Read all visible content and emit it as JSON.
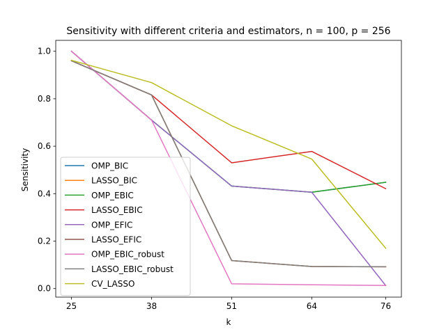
{
  "chart_data": {
    "type": "line",
    "title": "Sensitivity with different criteria and estimators, n = 100, p = 256",
    "xlabel": "k",
    "ylabel": "Sensitivity",
    "x": [
      25,
      38,
      51,
      64,
      76
    ],
    "x_tick_labels": [
      "25",
      "38",
      "51",
      "64",
      "76"
    ],
    "y_tick_labels": [
      "0.0",
      "0.2",
      "0.4",
      "0.6",
      "0.8",
      "1.0"
    ],
    "xlim": [
      22.45,
      78.55
    ],
    "ylim": [
      -0.036,
      1.046
    ],
    "grid": false,
    "legend_position": "lower-left",
    "series": [
      {
        "name": "OMP_BIC",
        "color": "#1f77b4",
        "values": [
          1.0,
          0.71,
          0.432,
          0.406,
          0.448
        ]
      },
      {
        "name": "LASSO_BIC",
        "color": "#ff7f0e",
        "values": [
          0.96,
          0.816,
          0.118,
          0.093,
          0.092
        ]
      },
      {
        "name": "OMP_EBIC",
        "color": "#2ca02c",
        "values": [
          1.0,
          0.71,
          0.432,
          0.406,
          0.448
        ]
      },
      {
        "name": "LASSO_EBIC",
        "color": "#d62728",
        "values": [
          0.96,
          0.816,
          0.53,
          0.578,
          0.421
        ]
      },
      {
        "name": "OMP_EFIC",
        "color": "#9467bd",
        "values": [
          1.0,
          0.71,
          0.432,
          0.406,
          0.013
        ]
      },
      {
        "name": "LASSO_EFIC",
        "color": "#8c564b",
        "values": [
          0.96,
          0.816,
          0.118,
          0.093,
          0.092
        ]
      },
      {
        "name": "OMP_EBIC_robust",
        "color": "#e377c2",
        "values": [
          1.0,
          0.71,
          0.02,
          0.016,
          0.013
        ]
      },
      {
        "name": "LASSO_EBIC_robust",
        "color": "#7f7f7f",
        "values": [
          0.96,
          0.816,
          0.118,
          0.093,
          0.092
        ]
      },
      {
        "name": "CV_LASSO",
        "color": "#bcbd22",
        "values": [
          0.962,
          0.868,
          0.686,
          0.546,
          0.17
        ]
      }
    ]
  }
}
